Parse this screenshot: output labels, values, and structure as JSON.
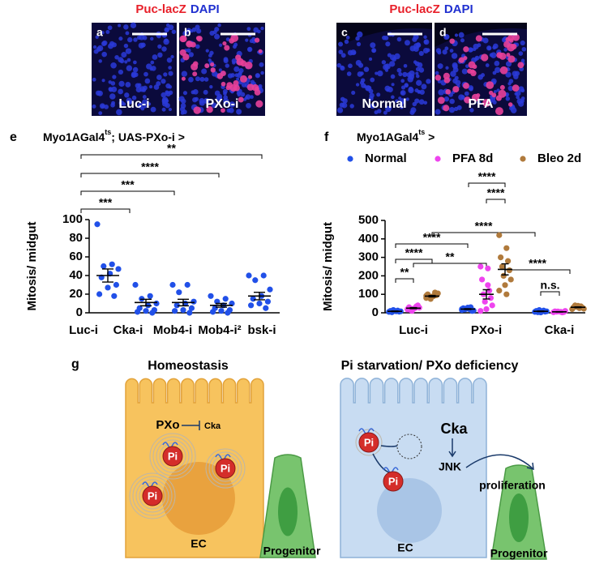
{
  "images": {
    "headers": [
      {
        "stain": "Puc-lacZ",
        "counterstain": "DAPI"
      },
      {
        "stain": "Puc-lacZ",
        "counterstain": "DAPI"
      }
    ],
    "panels": [
      {
        "letter": "a",
        "label": "Luc-i"
      },
      {
        "letter": "b",
        "label": "PXo-i"
      },
      {
        "letter": "c",
        "label": "Normal"
      },
      {
        "letter": "d",
        "label": "PFA"
      }
    ]
  },
  "chart_data": [
    {
      "type": "dot",
      "letter": "e",
      "title": {
        "main": "Myo1AGal4",
        "sup": "ts",
        "rest": "; UAS-PXo-i >"
      },
      "y_label": "Mitosis/ midgut",
      "ylim": [
        0,
        100
      ],
      "yticks": [
        0,
        20,
        40,
        60,
        80,
        100
      ],
      "categories": [
        "Luc-i",
        "Cka-i",
        "Mob4-i",
        "Mob4-i²",
        "bsk-i"
      ],
      "color": "#2150e8",
      "values": [
        [
          95,
          52,
          50,
          47,
          42,
          38,
          30,
          27,
          20,
          18
        ],
        [
          30,
          18,
          15,
          10,
          8,
          5,
          3,
          2,
          1,
          0
        ],
        [
          30,
          30,
          22,
          12,
          10,
          8,
          5,
          3,
          2,
          0
        ],
        [
          18,
          15,
          12,
          10,
          8,
          5,
          3,
          2,
          1,
          0
        ],
        [
          40,
          40,
          35,
          25,
          18,
          15,
          12,
          10,
          8,
          5
        ]
      ],
      "means": [
        40,
        11,
        11,
        8,
        18
      ],
      "sems": [
        7,
        3.5,
        3.5,
        2,
        4
      ],
      "significance": [
        "***",
        "***",
        "****",
        "**"
      ]
    },
    {
      "type": "grouped-dot",
      "letter": "f",
      "title": {
        "main": "Myo1AGal4",
        "sup": "ts",
        "rest": " >"
      },
      "y_label": "Mitosis/ midgut",
      "ylim": [
        0,
        500
      ],
      "yticks": [
        0,
        100,
        200,
        300,
        400,
        500
      ],
      "categories": [
        "Luc-i",
        "PXo-i",
        "Cka-i"
      ],
      "series": [
        {
          "name": "Normal",
          "color": "#2150e8",
          "values": [
            [
              5,
              8,
              10,
              12,
              3,
              6,
              15,
              8,
              10
            ],
            [
              15,
              20,
              25,
              30,
              18,
              10,
              22,
              12,
              28,
              20
            ],
            [
              5,
              8,
              10,
              12,
              3,
              6,
              15,
              8,
              2
            ]
          ],
          "means": [
            8,
            20,
            8
          ],
          "sems": [
            1.5,
            2,
            1.5
          ]
        },
        {
          "name": "PFA 8d",
          "color": "#ee44ee",
          "values": [
            [
              20,
              25,
              30,
              35,
              15,
              40,
              10,
              28,
              22,
              18
            ],
            [
              250,
              240,
              180,
              120,
              100,
              80,
              60,
              40,
              20,
              10,
              150
            ],
            [
              3,
              5,
              8,
              2,
              6,
              4,
              7,
              10
            ]
          ],
          "means": [
            25,
            100,
            5
          ],
          "sems": [
            3,
            25,
            1
          ]
        },
        {
          "name": "Bleo 2d",
          "color": "#b07a3c",
          "values": [
            [
              80,
              90,
              100,
              110,
              85,
              95,
              75,
              105,
              88,
              92
            ],
            [
              420,
              350,
              300,
              280,
              250,
              230,
              200,
              180,
              150,
              120,
              100
            ],
            [
              20,
              25,
              30,
              35,
              40,
              28,
              32,
              22,
              38
            ]
          ],
          "means": [
            90,
            235,
            30
          ],
          "sems": [
            4,
            30,
            2
          ]
        }
      ],
      "significance": [
        "**",
        "****",
        "****",
        "**",
        "****",
        "****",
        "****",
        "****",
        "n.s."
      ]
    }
  ],
  "diagram": {
    "letter": "g",
    "left": {
      "title": "Homeostasis",
      "pxo": "PXo",
      "cka": "Cka",
      "pi": [
        "Pi",
        "Pi",
        "Pi"
      ],
      "cell": "EC",
      "progenitor": "Progenitor"
    },
    "right": {
      "title": "Pi starvation/ PXo deficiency",
      "pi": [
        "Pi",
        "Pi"
      ],
      "cka": "Cka",
      "jnk": "JNK",
      "outcome": "proliferation",
      "cell": "EC",
      "progenitor": "Progenitor"
    }
  }
}
